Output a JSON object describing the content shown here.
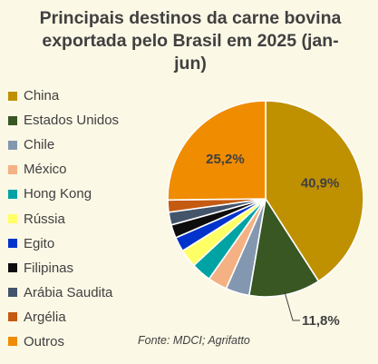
{
  "chart_data": {
    "type": "pie",
    "title": "Principais destinos da carne bovina exportada pelo Brasil em 2025 (jan-jun)",
    "source": "Fonte: MDCI; Agrifatto",
    "slices": [
      {
        "name": "China",
        "value": 40.9,
        "color": "#bf9000",
        "label": "40,9%"
      },
      {
        "name": "Estados Unidos",
        "value": 11.8,
        "color": "#385723",
        "label": "11,8%"
      },
      {
        "name": "Chile",
        "value": 3.9,
        "color": "#8497b0",
        "label": ""
      },
      {
        "name": "México",
        "value": 3.2,
        "color": "#f4b183",
        "label": ""
      },
      {
        "name": "Hong Kong",
        "value": 3.3,
        "color": "#00a3a3",
        "label": ""
      },
      {
        "name": "Rússia",
        "value": 3.0,
        "color": "#ffff66",
        "label": ""
      },
      {
        "name": "Egito",
        "value": 2.4,
        "color": "#0033cc",
        "label": ""
      },
      {
        "name": "Filipinas",
        "value": 2.2,
        "color": "#0d0d0d",
        "label": ""
      },
      {
        "name": "Arábia Saudita",
        "value": 2.1,
        "color": "#44546a",
        "label": ""
      },
      {
        "name": "Argélia",
        "value": 2.0,
        "color": "#c55a11",
        "label": ""
      },
      {
        "name": "Outros",
        "value": 25.2,
        "color": "#f08c00",
        "label": "25,2%"
      }
    ]
  }
}
